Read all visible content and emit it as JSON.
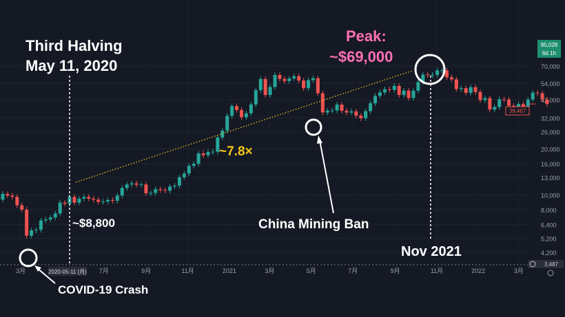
{
  "chart_data": {
    "type": "candlestick",
    "scale": "log",
    "grid": true,
    "interval": "weekly",
    "start_week": "2020-02-03",
    "closes": [
      10150,
      9900,
      9700,
      8550,
      8000,
      5400,
      5850,
      5900,
      6800,
      6900,
      7100,
      7550,
      8900,
      8750,
      9700,
      8900,
      9450,
      9700,
      9450,
      9300,
      9000,
      9050,
      9250,
      9150,
      9900,
      11100,
      11700,
      11900,
      11650,
      11700,
      10250,
      10300,
      10900,
      10750,
      10650,
      11350,
      11500,
      13050,
      13800,
      15500,
      16000,
      18700,
      18200,
      19100,
      19200,
      23800,
      26400,
      33000,
      38200,
      36000,
      32300,
      34300,
      39200,
      48600,
      57500,
      45200,
      51000,
      61200,
      57600,
      55800,
      58000,
      60000,
      56200,
      50100,
      56600,
      58200,
      46400,
      34700,
      35700,
      35800,
      39100,
      35600,
      34700,
      35300,
      33100,
      31800,
      35400,
      39900,
      44600,
      47000,
      49300,
      48800,
      51800,
      45200,
      48300,
      43200,
      48200,
      54900,
      61500,
      60900,
      61300,
      65500,
      65500,
      59000,
      57200,
      49400,
      50100,
      46700,
      50800,
      47300,
      41900,
      43100,
      36300,
      37700,
      42400,
      42200,
      38400,
      37700,
      39400,
      37800,
      42200,
      46800,
      46400,
      42200,
      39467
    ],
    "first_open": 9300,
    "y_ticks": [
      "70,000",
      "54,000",
      "42,000",
      "32,000",
      "26,000",
      "20,000",
      "16,000",
      "13,000",
      "10,000",
      "8,000",
      "6,400",
      "5,200",
      "4,200"
    ],
    "y_tick_values": [
      70000,
      54000,
      42000,
      32000,
      26000,
      20000,
      16000,
      13000,
      10000,
      8000,
      6400,
      5200,
      4200
    ],
    "x_ticks": [
      "3月",
      "7月",
      "9月",
      "11月",
      "2021",
      "3月",
      "5月",
      "7月",
      "9月",
      "11月",
      "2022",
      "3月"
    ],
    "x_tick_dates": [
      "2020-03-01",
      "2020-07-01",
      "2020-09-01",
      "2020-11-01",
      "2021-01-01",
      "2021-03-01",
      "2021-05-01",
      "2021-07-01",
      "2021-09-01",
      "2021-11-01",
      "2022-01-01",
      "2022-03-01"
    ],
    "crosshair_date_label": "2020-05-11 (月)",
    "price_badges": {
      "top_value": "95,028",
      "top_sub": "6d 1h",
      "last_price": "39,467",
      "bottom_value": "3,487"
    },
    "colors": {
      "up": "#26a69a",
      "down": "#ef5350",
      "background": "#151924",
      "trend": "#f5c518",
      "peak": "#ff6fb5"
    }
  },
  "annotations": {
    "halving_title": "Third Halving",
    "halving_date": "May 11, 2020",
    "halving_price": "~$8,800",
    "covid": "COVID-19 Crash",
    "multiple": "~7.8×",
    "peak_title": "Peak:",
    "peak_price": "~$69,000",
    "china": "China Mining Ban",
    "nov": "Nov 2021"
  }
}
